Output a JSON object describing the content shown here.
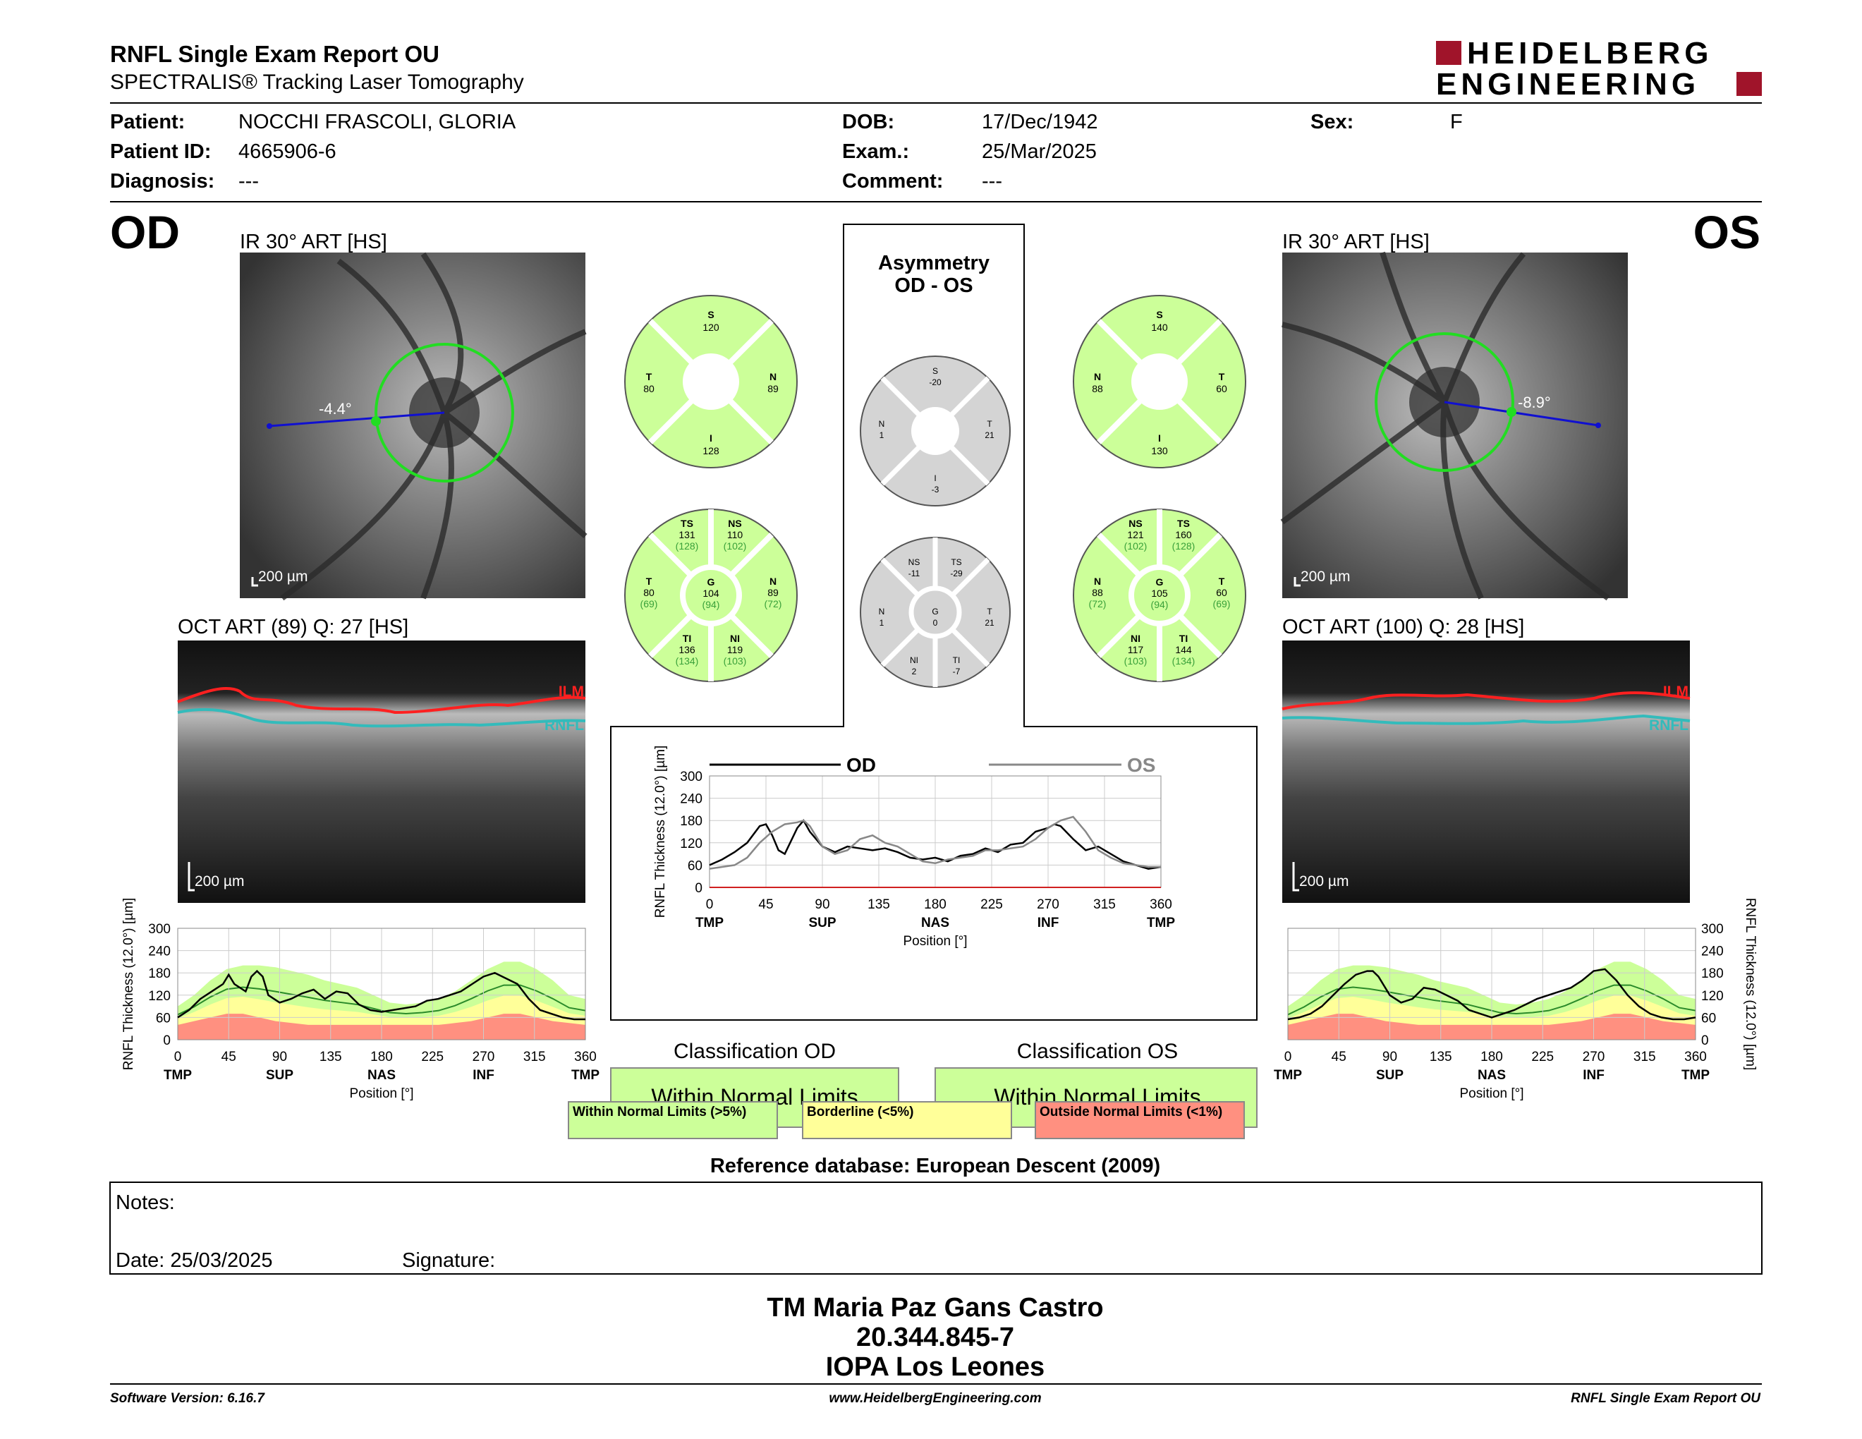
{
  "header": {
    "title": "RNFL Single Exam Report OU",
    "subtitle": "SPECTRALIS® Tracking Laser Tomography",
    "logo_line1": "HEIDELBERG",
    "logo_line2": "ENGINEERING"
  },
  "patient": {
    "patient_label": "Patient:",
    "patient_value": "NOCCHI FRASCOLI, GLORIA",
    "id_label": "Patient ID:",
    "id_value": "4665906-6",
    "diagnosis_label": "Diagnosis:",
    "diagnosis_value": "---",
    "dob_label": "DOB:",
    "dob_value": "17/Dec/1942",
    "exam_label": "Exam.:",
    "exam_value": "25/Mar/2025",
    "comment_label": "Comment:",
    "comment_value": "---",
    "sex_label": "Sex:",
    "sex_value": "F"
  },
  "od": {
    "eye_label": "OD",
    "ir_title": "IR 30° ART [HS]",
    "angle": "-4.4°",
    "scale_ir": "200 µm",
    "oct_title": "OCT ART (89) Q: 27 [HS]",
    "scale_oct": "200 µm",
    "ilm": "ILM",
    "rnfl": "RNFL",
    "quad": {
      "S": "S",
      "S_val": "120",
      "T": "T",
      "T_val": "80",
      "N": "N",
      "N_val": "89",
      "I": "I",
      "I_val": "128"
    },
    "sect": {
      "TS": "TS",
      "TS_val": "131",
      "TS_ref": "(128)",
      "NS": "NS",
      "NS_val": "110",
      "NS_ref": "(102)",
      "T": "T",
      "T_val": "80",
      "T_ref": "(69)",
      "G": "G",
      "G_val": "104",
      "G_ref": "(94)",
      "N": "N",
      "N_val": "89",
      "N_ref": "(72)",
      "TI": "TI",
      "TI_val": "136",
      "TI_ref": "(134)",
      "NI": "NI",
      "NI_val": "119",
      "NI_ref": "(103)"
    },
    "classification_title": "Classification OD",
    "classification": "Within Normal Limits"
  },
  "os": {
    "eye_label": "OS",
    "ir_title": "IR 30° ART [HS]",
    "angle": "-8.9°",
    "scale_ir": "200 µm",
    "oct_title": "OCT ART (100) Q: 28 [HS]",
    "scale_oct": "200 µm",
    "ilm": "ILM",
    "rnfl": "RNFL",
    "quad": {
      "S": "S",
      "S_val": "140",
      "T": "T",
      "T_val": "60",
      "N": "N",
      "N_val": "88",
      "I": "I",
      "I_val": "130"
    },
    "sect": {
      "TS": "TS",
      "TS_val": "160",
      "TS_ref": "(128)",
      "NS": "NS",
      "NS_val": "121",
      "NS_ref": "(102)",
      "T": "T",
      "T_val": "60",
      "T_ref": "(69)",
      "G": "G",
      "G_val": "105",
      "G_ref": "(94)",
      "N": "N",
      "N_val": "88",
      "N_ref": "(72)",
      "TI": "TI",
      "TI_val": "144",
      "TI_ref": "(134)",
      "NI": "NI",
      "NI_val": "117",
      "NI_ref": "(103)"
    },
    "classification_title": "Classification OS",
    "classification": "Within Normal Limits"
  },
  "asym": {
    "title1": "Asymmetry",
    "title2": "OD - OS",
    "quad": {
      "S": "S",
      "S_val": "-20",
      "N": "N",
      "N_val": "1",
      "T": "T",
      "T_val": "21",
      "I": "I",
      "I_val": "-3"
    },
    "sect": {
      "NS": "NS",
      "NS_val": "-11",
      "TS": "TS",
      "TS_val": "-29",
      "N": "N",
      "N_val": "1",
      "G": "G",
      "G_val": "0",
      "T": "T",
      "T_val": "21",
      "NI": "NI",
      "NI_val": "2",
      "TI": "TI",
      "TI_val": "-7"
    }
  },
  "legend": {
    "normal": "Within Normal Limits (>5%)",
    "borderline": "Borderline (<5%)",
    "outside": "Outside Normal Limits (<1%)"
  },
  "reference": "Reference database: European Descent (2009)",
  "notes": {
    "notes_label": "Notes:",
    "date_label": "Date: 25/03/2025",
    "signature_label": "Signature:"
  },
  "signer": {
    "name": "TM Maria Paz Gans Castro",
    "id": "20.344.845-7",
    "org": "IOPA Los Leones"
  },
  "footer": {
    "version": "Software Version: 6.16.7",
    "url": "www.HeidelbergEngineering.com",
    "report": "RNFL Single Exam Report OU"
  },
  "colors": {
    "normal": "#ccff99",
    "borderline": "#ffff99",
    "outside": "#ff9080",
    "asym": "#d4d4d4",
    "brand": "#a0142a",
    "ilm": "#ff2020",
    "rnfl": "#33bbbb",
    "circle": "#22dd22",
    "scan_line": "#1010d0"
  },
  "chart_data": [
    {
      "type": "line",
      "title": "OD",
      "ylabel": "RNFL Thickness (12.0°) [µm]",
      "xlabel": "Position [°]",
      "x_ticks": [
        0,
        45,
        90,
        135,
        180,
        225,
        270,
        315,
        360
      ],
      "x_tick_labels": [
        "TMP",
        "SUP",
        "NAS",
        "INF",
        "TMP"
      ],
      "y_ticks": [
        0,
        60,
        120,
        180,
        240,
        300
      ],
      "xlim": [
        0,
        360
      ],
      "ylim": [
        0,
        300
      ],
      "series": [
        {
          "x": [
            0,
            10,
            20,
            30,
            40,
            45,
            50,
            60,
            65,
            70,
            75,
            80,
            85,
            90,
            100,
            110,
            120,
            130,
            140,
            150,
            160,
            170,
            180,
            190,
            200,
            210,
            220,
            230,
            240,
            250,
            260,
            270,
            280,
            290,
            300,
            310,
            320,
            330,
            340,
            350,
            360
          ],
          "y": [
            60,
            80,
            110,
            130,
            150,
            175,
            150,
            130,
            170,
            185,
            170,
            120,
            110,
            100,
            110,
            125,
            135,
            110,
            130,
            125,
            95,
            80,
            75,
            80,
            85,
            90,
            105,
            110,
            120,
            130,
            150,
            170,
            180,
            165,
            150,
            110,
            80,
            70,
            60,
            55,
            55
          ]
        }
      ],
      "band_upper": [
        90,
        120,
        160,
        190,
        200,
        200,
        195,
        185,
        175,
        160,
        150,
        140,
        120,
        100,
        95,
        100,
        110,
        130,
        160,
        190,
        210,
        210,
        190,
        160,
        120,
        110
      ],
      "band_lower": [
        40,
        50,
        60,
        70,
        70,
        60,
        50,
        45,
        40,
        40,
        40,
        40,
        40,
        40,
        40,
        40,
        40,
        45,
        50,
        60,
        70,
        70,
        60,
        50,
        45,
        40
      ]
    },
    {
      "type": "line",
      "title": "Asymmetry OD - OS",
      "ylabel": "RNFL Thickness (12.0°) [µm]",
      "xlabel": "Position [°]",
      "x_ticks": [
        0,
        45,
        90,
        135,
        180,
        225,
        270,
        315,
        360
      ],
      "x_tick_labels": [
        "TMP",
        "SUP",
        "NAS",
        "INF",
        "TMP"
      ],
      "y_ticks": [
        0,
        60,
        120,
        180,
        240,
        300
      ],
      "xlim": [
        0,
        360
      ],
      "ylim": [
        0,
        300
      ],
      "series": [
        {
          "name": "OD",
          "x": [
            0,
            10,
            20,
            30,
            40,
            45,
            50,
            55,
            60,
            70,
            75,
            80,
            90,
            100,
            110,
            120,
            130,
            140,
            150,
            160,
            170,
            180,
            190,
            200,
            210,
            220,
            230,
            240,
            250,
            260,
            270,
            275,
            280,
            290,
            300,
            310,
            320,
            330,
            340,
            350,
            360
          ],
          "y": [
            60,
            75,
            95,
            120,
            165,
            170,
            140,
            100,
            90,
            160,
            180,
            150,
            110,
            95,
            110,
            105,
            100,
            105,
            95,
            80,
            75,
            80,
            70,
            85,
            90,
            105,
            95,
            115,
            120,
            150,
            160,
            170,
            165,
            130,
            100,
            110,
            90,
            70,
            60,
            50,
            55
          ]
        },
        {
          "name": "OS",
          "x": [
            0,
            10,
            20,
            30,
            40,
            50,
            60,
            70,
            75,
            80,
            90,
            100,
            110,
            120,
            130,
            140,
            150,
            160,
            170,
            180,
            190,
            200,
            210,
            220,
            230,
            240,
            250,
            260,
            270,
            280,
            290,
            300,
            310,
            320,
            330,
            340,
            350,
            360
          ],
          "y": [
            50,
            55,
            60,
            80,
            120,
            150,
            170,
            175,
            180,
            165,
            110,
            90,
            100,
            130,
            140,
            120,
            110,
            90,
            70,
            65,
            75,
            80,
            85,
            100,
            100,
            105,
            110,
            130,
            160,
            180,
            190,
            150,
            100,
            80,
            65,
            60,
            55,
            55
          ]
        }
      ]
    },
    {
      "type": "line",
      "title": "OS",
      "ylabel": "RNFL Thickness (12.0°) [µm]",
      "xlabel": "Position [°]",
      "x_ticks": [
        0,
        45,
        90,
        135,
        180,
        225,
        270,
        315,
        360
      ],
      "x_tick_labels": [
        "TMP",
        "SUP",
        "NAS",
        "INF",
        "TMP"
      ],
      "y_ticks": [
        0,
        60,
        120,
        180,
        240,
        300
      ],
      "xlim": [
        0,
        360
      ],
      "ylim": [
        0,
        300
      ],
      "series": [
        {
          "x": [
            0,
            10,
            20,
            30,
            40,
            50,
            60,
            70,
            75,
            80,
            90,
            100,
            110,
            120,
            130,
            140,
            150,
            160,
            170,
            180,
            190,
            200,
            210,
            220,
            230,
            240,
            250,
            260,
            270,
            280,
            290,
            300,
            310,
            320,
            330,
            340,
            350,
            360
          ],
          "y": [
            55,
            60,
            70,
            90,
            120,
            150,
            175,
            185,
            185,
            170,
            120,
            100,
            110,
            140,
            135,
            120,
            105,
            80,
            70,
            60,
            70,
            80,
            95,
            110,
            120,
            130,
            140,
            160,
            185,
            190,
            160,
            120,
            90,
            70,
            60,
            55,
            55,
            60
          ]
        }
      ],
      "band_upper": [
        90,
        120,
        160,
        190,
        200,
        200,
        195,
        185,
        175,
        160,
        150,
        140,
        120,
        100,
        95,
        100,
        110,
        130,
        160,
        190,
        210,
        210,
        190,
        160,
        120,
        110
      ],
      "band_lower": [
        40,
        50,
        60,
        70,
        70,
        60,
        50,
        45,
        40,
        40,
        40,
        40,
        40,
        40,
        40,
        40,
        40,
        45,
        50,
        60,
        70,
        70,
        60,
        50,
        45,
        40
      ]
    }
  ]
}
